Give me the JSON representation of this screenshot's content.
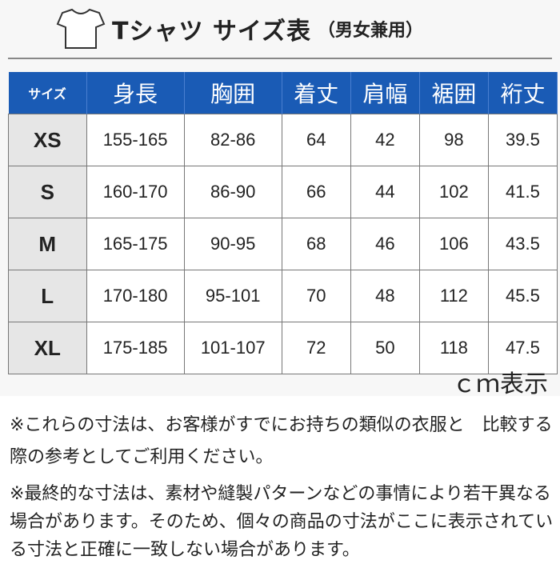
{
  "title": {
    "main": "Tシャツ サイズ表",
    "sub": "（男女兼用）"
  },
  "table": {
    "headers": [
      "サイズ",
      "身長",
      "胸囲",
      "着丈",
      "肩幅",
      "裾囲",
      "裄丈"
    ],
    "rows": [
      [
        "XS",
        "155-165",
        "82-86",
        "64",
        "42",
        "98",
        "39.5"
      ],
      [
        "S",
        "160-170",
        "86-90",
        "66",
        "44",
        "102",
        "41.5"
      ],
      [
        "M",
        "165-175",
        "90-95",
        "68",
        "46",
        "106",
        "43.5"
      ],
      [
        "L",
        "170-180",
        "95-101",
        "70",
        "48",
        "112",
        "45.5"
      ],
      [
        "XL",
        "175-185",
        "101-107",
        "72",
        "50",
        "118",
        "47.5"
      ]
    ]
  },
  "unit": "ｃｍ表示",
  "notes": [
    "※これらの寸法は、お客様がすでにお持ちの類似の衣服と　比較する際の参考としてご利用ください。",
    "※最終的な寸法は、素材や縫製パターンなどの事情により若干異なる場合があります。そのため、個々の商品の寸法がここに表示されている寸法と正確に一致しない場合があります。"
  ],
  "colors": {
    "header": "#1a5bb5",
    "size_column": "#e6e6e6"
  }
}
